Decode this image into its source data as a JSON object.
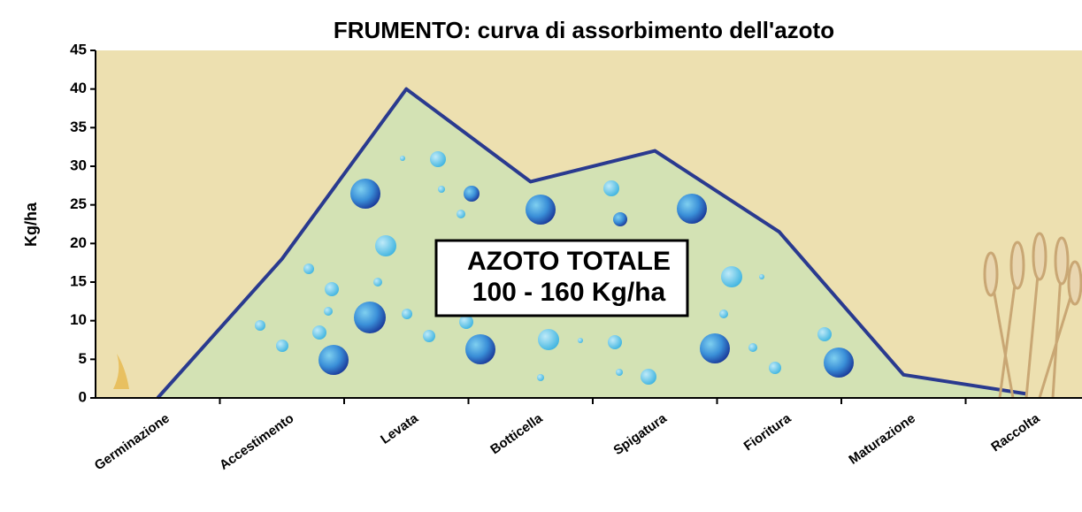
{
  "chart_data": {
    "type": "area",
    "title": "FRUMENTO: curva di assorbimento dell'azoto",
    "y_label": "Kg/ha",
    "categories": [
      "Germinazione",
      "Accestimento",
      "Levata",
      "Botticella",
      "Spigatura",
      "Fioritura",
      "Maturazione",
      "Raccolta"
    ],
    "values": [
      0,
      18,
      40,
      28,
      32,
      21.5,
      3,
      0.5
    ],
    "color": "#2a3a8f",
    "fill": "#d3e2b4",
    "background": "#ede0b0",
    "ylim": [
      0,
      45
    ],
    "yticks": [
      0,
      5,
      10,
      15,
      20,
      25,
      30,
      35,
      40,
      45
    ],
    "annotation": [
      "AZOTO TOTALE",
      "100 - 160 Kg/ha"
    ]
  }
}
